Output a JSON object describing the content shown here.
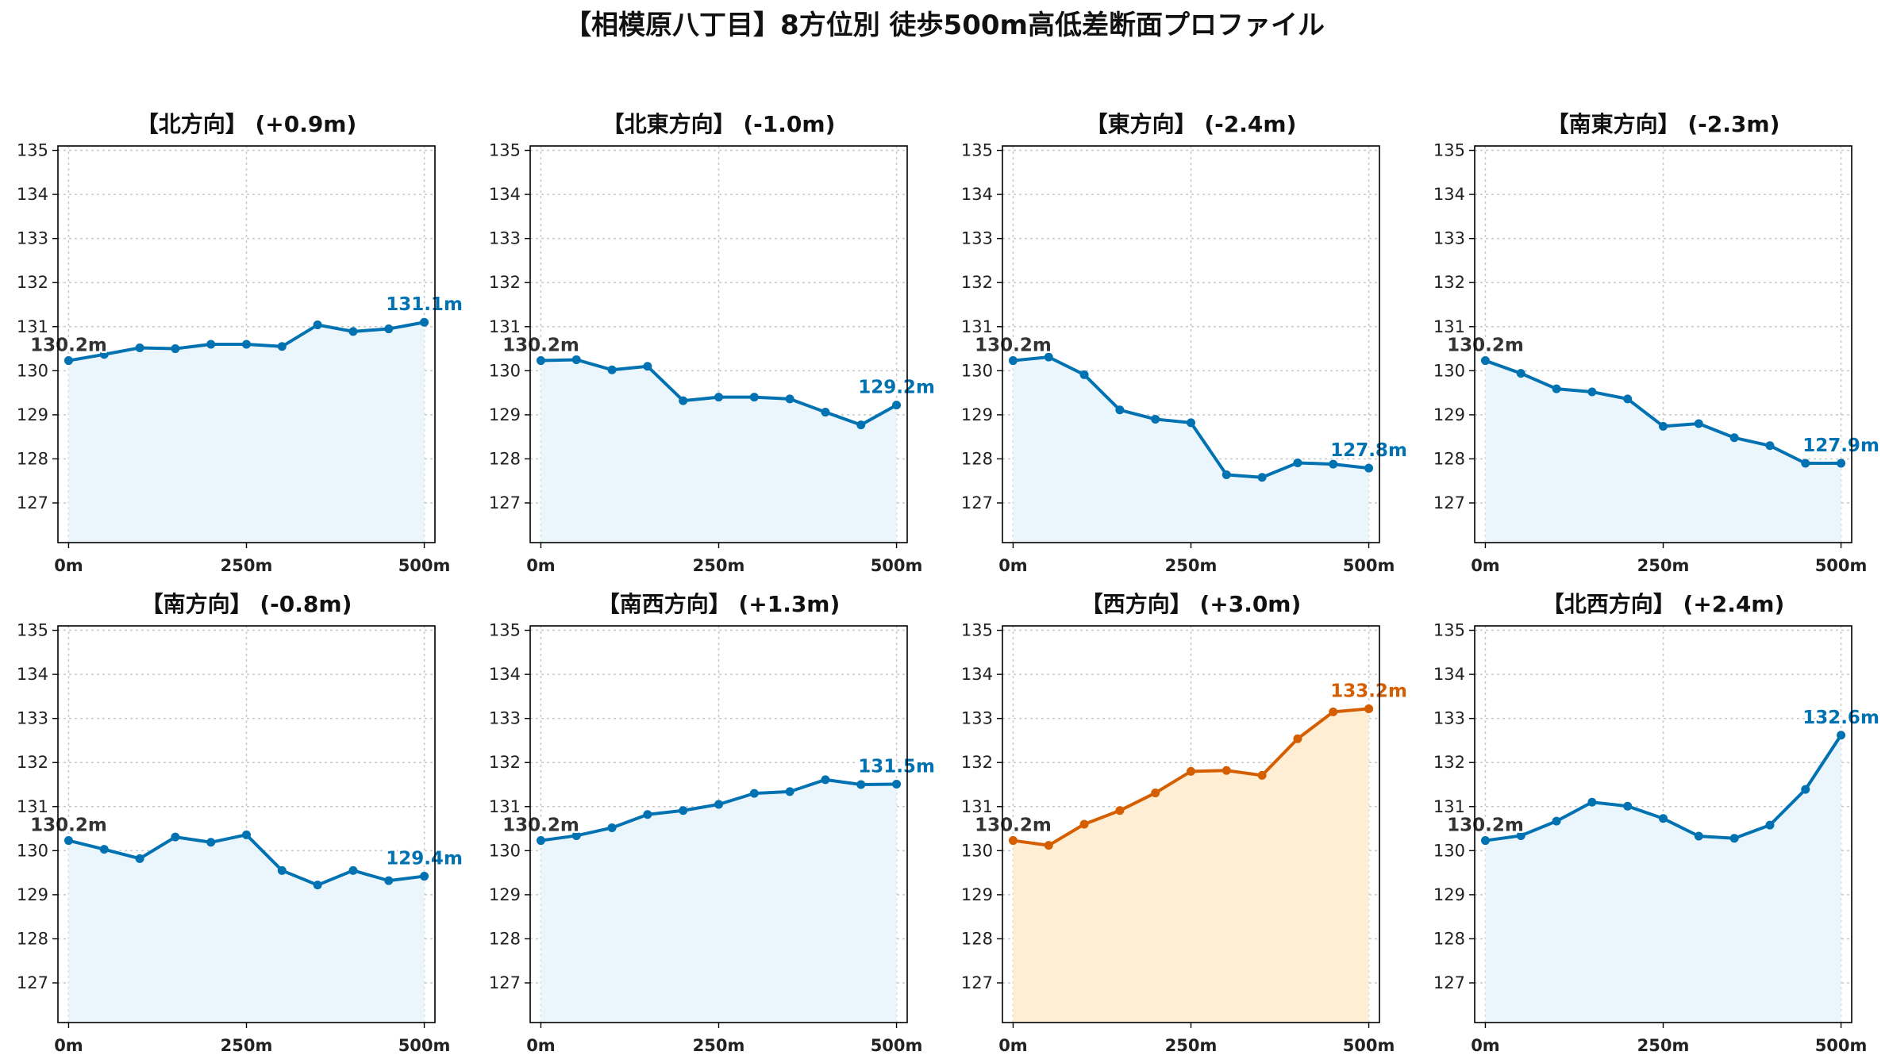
{
  "title": "【相模原八丁目】8方位別 徒歩500m高低差断面プロファイル",
  "chart_data": [
    {
      "type": "line",
      "title": "【北方向】 (+0.9m)",
      "x": [
        0,
        50,
        100,
        150,
        200,
        250,
        300,
        350,
        400,
        450,
        500
      ],
      "y": [
        130.23,
        130.37,
        130.52,
        130.5,
        130.6,
        130.6,
        130.55,
        131.04,
        130.89,
        130.95,
        131.1
      ],
      "xticks": [
        "0m",
        "250m",
        "500m"
      ],
      "yticks": [
        "127",
        "128",
        "129",
        "130",
        "131",
        "132",
        "133",
        "134",
        "135"
      ],
      "xlim": [
        -15,
        515
      ],
      "ylim": [
        126.1,
        135.1
      ],
      "start_label": "130.2m",
      "end_label": "131.1m",
      "line_color": "#0072b2",
      "fill_color": "#eaf6fb",
      "highlight": false
    },
    {
      "type": "line",
      "title": "【北東方向】 (-1.0m)",
      "x": [
        0,
        50,
        100,
        150,
        200,
        250,
        300,
        350,
        400,
        450,
        500
      ],
      "y": [
        130.23,
        130.25,
        130.02,
        130.1,
        129.32,
        129.4,
        129.4,
        129.36,
        129.06,
        128.77,
        129.22
      ],
      "xticks": [
        "0m",
        "250m",
        "500m"
      ],
      "yticks": [
        "127",
        "128",
        "129",
        "130",
        "131",
        "132",
        "133",
        "134",
        "135"
      ],
      "xlim": [
        -15,
        515
      ],
      "ylim": [
        126.1,
        135.1
      ],
      "start_label": "130.2m",
      "end_label": "129.2m",
      "line_color": "#0072b2",
      "fill_color": "#eaf6fb",
      "highlight": false
    },
    {
      "type": "line",
      "title": "【東方向】 (-2.4m)",
      "x": [
        0,
        50,
        100,
        150,
        200,
        250,
        300,
        350,
        400,
        450,
        500
      ],
      "y": [
        130.23,
        130.31,
        129.91,
        129.11,
        128.9,
        128.82,
        127.64,
        127.58,
        127.91,
        127.88,
        127.79
      ],
      "xticks": [
        "0m",
        "250m",
        "500m"
      ],
      "yticks": [
        "127",
        "128",
        "129",
        "130",
        "131",
        "132",
        "133",
        "134",
        "135"
      ],
      "xlim": [
        -15,
        515
      ],
      "ylim": [
        126.1,
        135.1
      ],
      "start_label": "130.2m",
      "end_label": "127.8m",
      "line_color": "#0072b2",
      "fill_color": "#eaf6fb",
      "highlight": false
    },
    {
      "type": "line",
      "title": "【南東方向】 (-2.3m)",
      "x": [
        0,
        50,
        100,
        150,
        200,
        250,
        300,
        350,
        400,
        450,
        500
      ],
      "y": [
        130.23,
        129.94,
        129.59,
        129.52,
        129.36,
        128.74,
        128.8,
        128.48,
        128.3,
        127.9,
        127.9
      ],
      "xticks": [
        "0m",
        "250m",
        "500m"
      ],
      "yticks": [
        "127",
        "128",
        "129",
        "130",
        "131",
        "132",
        "133",
        "134",
        "135"
      ],
      "xlim": [
        -15,
        515
      ],
      "ylim": [
        126.1,
        135.1
      ],
      "start_label": "130.2m",
      "end_label": "127.9m",
      "line_color": "#0072b2",
      "fill_color": "#eaf6fb",
      "highlight": false
    },
    {
      "type": "line",
      "title": "【南方向】 (-0.8m)",
      "x": [
        0,
        50,
        100,
        150,
        200,
        250,
        300,
        350,
        400,
        450,
        500
      ],
      "y": [
        130.23,
        130.03,
        129.82,
        130.31,
        130.19,
        130.36,
        129.55,
        129.22,
        129.55,
        129.32,
        129.42
      ],
      "xticks": [
        "0m",
        "250m",
        "500m"
      ],
      "yticks": [
        "127",
        "128",
        "129",
        "130",
        "131",
        "132",
        "133",
        "134",
        "135"
      ],
      "xlim": [
        -15,
        515
      ],
      "ylim": [
        126.1,
        135.1
      ],
      "start_label": "130.2m",
      "end_label": "129.4m",
      "line_color": "#0072b2",
      "fill_color": "#eaf6fb",
      "highlight": false
    },
    {
      "type": "line",
      "title": "【南西方向】 (+1.3m)",
      "x": [
        0,
        50,
        100,
        150,
        200,
        250,
        300,
        350,
        400,
        450,
        500
      ],
      "y": [
        130.23,
        130.34,
        130.52,
        130.82,
        130.91,
        131.05,
        131.3,
        131.34,
        131.61,
        131.5,
        131.51
      ],
      "xticks": [
        "0m",
        "250m",
        "500m"
      ],
      "yticks": [
        "127",
        "128",
        "129",
        "130",
        "131",
        "132",
        "133",
        "134",
        "135"
      ],
      "xlim": [
        -15,
        515
      ],
      "ylim": [
        126.1,
        135.1
      ],
      "start_label": "130.2m",
      "end_label": "131.5m",
      "line_color": "#0072b2",
      "fill_color": "#eaf6fb",
      "highlight": false
    },
    {
      "type": "line",
      "title": "【西方向】 (+3.0m)",
      "x": [
        0,
        50,
        100,
        150,
        200,
        250,
        300,
        350,
        400,
        450,
        500
      ],
      "y": [
        130.23,
        130.12,
        130.6,
        130.91,
        131.31,
        131.8,
        131.82,
        131.71,
        132.54,
        133.15,
        133.22
      ],
      "xticks": [
        "0m",
        "250m",
        "500m"
      ],
      "yticks": [
        "127",
        "128",
        "129",
        "130",
        "131",
        "132",
        "133",
        "134",
        "135"
      ],
      "xlim": [
        -15,
        515
      ],
      "ylim": [
        126.1,
        135.1
      ],
      "start_label": "130.2m",
      "end_label": "133.2m",
      "line_color": "#d55e00",
      "fill_color": "#ffeed4",
      "highlight": true
    },
    {
      "type": "line",
      "title": "【北西方向】 (+2.4m)",
      "x": [
        0,
        50,
        100,
        150,
        200,
        250,
        300,
        350,
        400,
        450,
        500
      ],
      "y": [
        130.23,
        130.34,
        130.67,
        131.1,
        131.01,
        130.73,
        130.33,
        130.28,
        130.58,
        131.39,
        132.62
      ],
      "xticks": [
        "0m",
        "250m",
        "500m"
      ],
      "yticks": [
        "127",
        "128",
        "129",
        "130",
        "131",
        "132",
        "133",
        "134",
        "135"
      ],
      "xlim": [
        -15,
        515
      ],
      "ylim": [
        126.1,
        135.1
      ],
      "start_label": "130.2m",
      "end_label": "132.6m",
      "line_color": "#0072b2",
      "fill_color": "#eaf6fb",
      "highlight": false
    }
  ]
}
